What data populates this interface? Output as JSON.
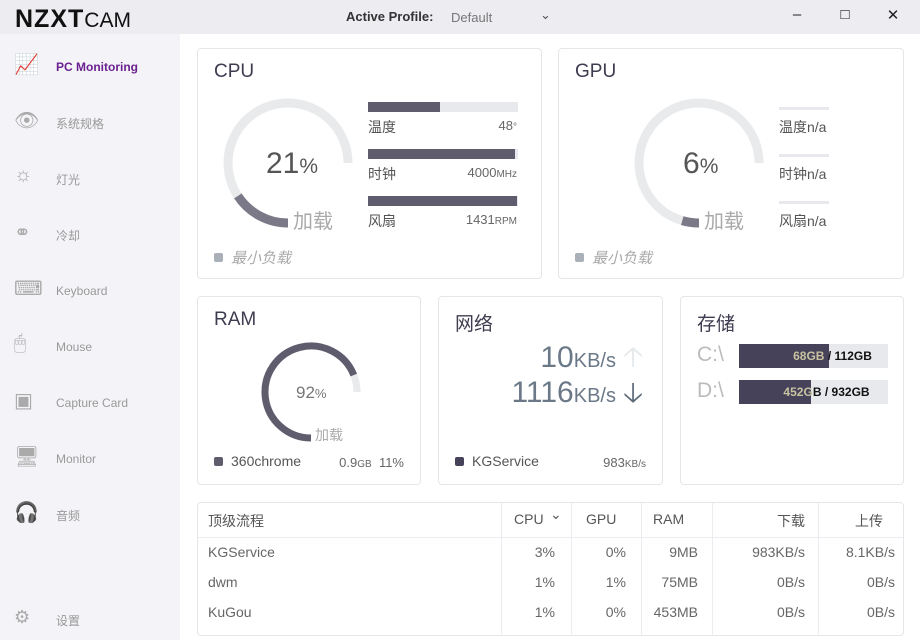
{
  "app": {
    "logo_bold": "NZXT",
    "logo_light": "CAM",
    "profile_label": "Active Profile:",
    "profile_value": "Default"
  },
  "sidebar": {
    "items": [
      {
        "label": "PC Monitoring",
        "icon": "chart-line-icon",
        "active": true
      },
      {
        "label": "系统规格",
        "icon": "eye-icon"
      },
      {
        "label": "灯光",
        "icon": "sun-icon"
      },
      {
        "label": "冷却",
        "icon": "fan-bowl-icon"
      },
      {
        "label": "Keyboard",
        "icon": "keyboard-icon"
      },
      {
        "label": "Mouse",
        "icon": "mouse-icon"
      },
      {
        "label": "Capture Card",
        "icon": "capture-card-icon"
      },
      {
        "label": "Monitor",
        "icon": "monitor-icon"
      },
      {
        "label": "音频",
        "icon": "headset-icon"
      }
    ],
    "settings": "设置"
  },
  "cpu": {
    "title": "CPU",
    "load": 21,
    "load_text": "21",
    "pct": "%",
    "load_label": "加载",
    "temp_label": "温度",
    "temp": "48",
    "temp_unit": "°",
    "temp_fill": 0.48,
    "clock_label": "时钟",
    "clock": "4000",
    "clock_unit": "MHz",
    "clock_fill": 0.98,
    "fan_label": "风扇",
    "fan": "1431",
    "fan_unit": "RPM",
    "fan_fill": 0.99,
    "mode": "最小负载"
  },
  "gpu": {
    "title": "GPU",
    "load": 6,
    "load_text": "6",
    "pct": "%",
    "load_label": "加载",
    "temp_label": "温度",
    "temp": "n/a",
    "clock_label": "时钟",
    "clock": "n/a",
    "fan_label": "风扇",
    "fan": "n/a",
    "mode": "最小负载"
  },
  "ram": {
    "title": "RAM",
    "load": 92,
    "load_text": "92",
    "pct": "%",
    "load_label": "加载",
    "top_process": "360chrome",
    "top_mem": "0.9",
    "top_mem_unit": "GB",
    "top_pct": "11%"
  },
  "network": {
    "title": "网络",
    "up": "10",
    "up_unit": "KB/s",
    "down": "1116",
    "down_unit": "KB/s",
    "top_process": "KGService",
    "top_rate": "983",
    "top_rate_unit": "KB/s"
  },
  "storage": {
    "title": "存储",
    "drives": [
      {
        "label": "C:\\",
        "text": "68GB / 112GB",
        "fill": 0.607
      },
      {
        "label": "D:\\",
        "text": "452GB / 932GB",
        "fill": 0.485
      }
    ]
  },
  "processes": {
    "headers": [
      "顶级流程",
      "CPU",
      "GPU",
      "RAM",
      "下载",
      "上传"
    ],
    "rows": [
      [
        "KGService",
        "3%",
        "0%",
        "9MB",
        "983KB/s",
        "8.1KB/s"
      ],
      [
        "dwm",
        "1%",
        "1%",
        "75MB",
        "0B/s",
        "0B/s"
      ],
      [
        "KuGou",
        "1%",
        "0%",
        "453MB",
        "0B/s",
        "0B/s"
      ]
    ]
  },
  "colors": {
    "accent": "#6a2090",
    "gauge_fill": "#7b7887",
    "gauge_track": "#e8eaec",
    "bar": "#5f5c6e",
    "storage_fill": "#45425a"
  }
}
